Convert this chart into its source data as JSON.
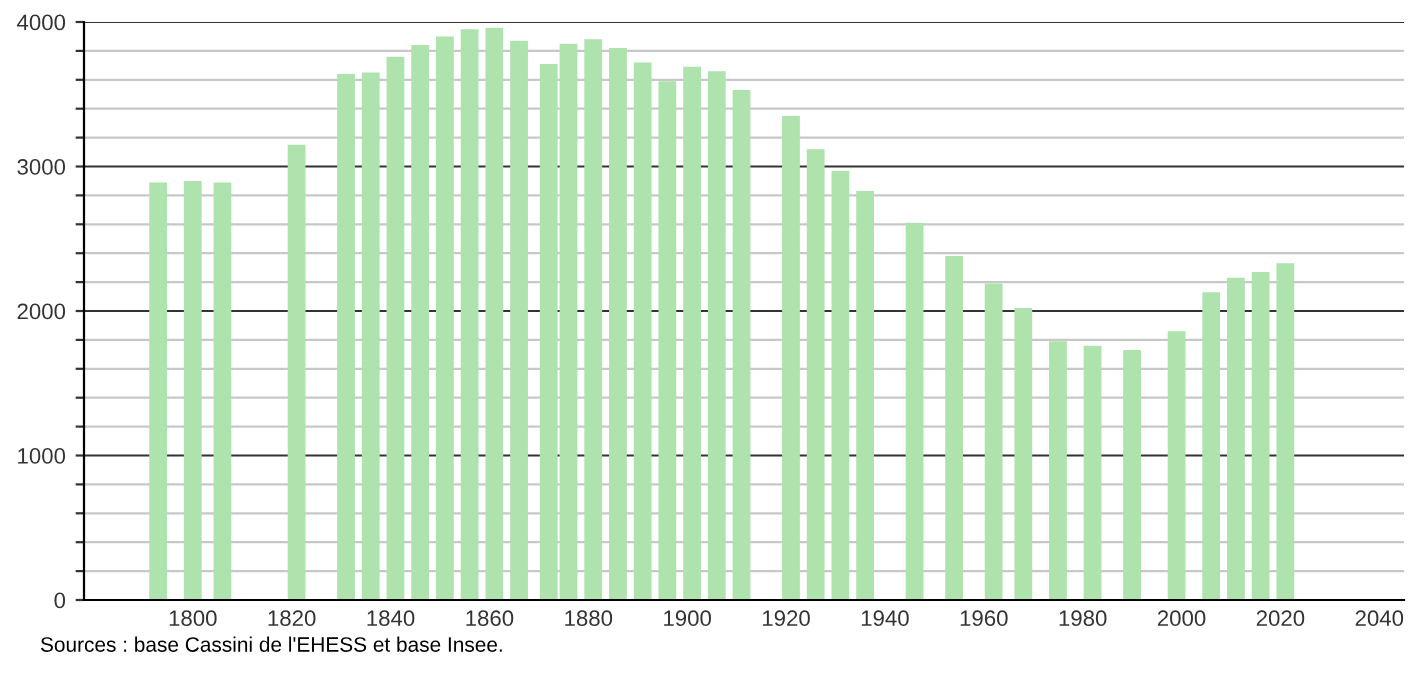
{
  "chart_data": {
    "type": "bar",
    "x": [
      1793,
      1800,
      1806,
      1821,
      1831,
      1836,
      1841,
      1846,
      1851,
      1856,
      1861,
      1866,
      1872,
      1876,
      1881,
      1886,
      1891,
      1896,
      1901,
      1906,
      1911,
      1921,
      1926,
      1931,
      1936,
      1946,
      1954,
      1962,
      1968,
      1975,
      1982,
      1990,
      1999,
      2006,
      2011,
      2016,
      2021
    ],
    "values": [
      2890,
      2900,
      2890,
      3150,
      3640,
      3650,
      3760,
      3840,
      3900,
      3950,
      3960,
      3870,
      3710,
      3850,
      3880,
      3820,
      3720,
      3590,
      3690,
      3660,
      3530,
      3350,
      3120,
      2970,
      2830,
      2610,
      2380,
      2190,
      2020,
      1790,
      1760,
      1730,
      1860,
      2130,
      2230,
      2270,
      2330
    ],
    "color": "#aee3ae",
    "xlim": [
      1778,
      2045
    ],
    "xticks": [
      1800,
      1820,
      1840,
      1860,
      1880,
      1900,
      1920,
      1940,
      1960,
      1980,
      2000,
      2020,
      2040
    ],
    "ylim": [
      0,
      4000
    ],
    "yticks": [
      0,
      {
        "value": 200,
        "label": null
      },
      {
        "value": 400,
        "label": null
      },
      {
        "value": 600,
        "label": null
      },
      {
        "value": 800,
        "label": null
      },
      1000,
      {
        "value": 1200,
        "label": null
      },
      {
        "value": 1400,
        "label": null
      },
      {
        "value": 1600,
        "label": null
      },
      {
        "value": 1800,
        "label": null
      },
      2000,
      {
        "value": 2200,
        "label": null
      },
      {
        "value": 2400,
        "label": null
      },
      {
        "value": 2600,
        "label": null
      },
      {
        "value": 2800,
        "label": null
      },
      3000,
      {
        "value": 3200,
        "label": null
      },
      {
        "value": 3400,
        "label": null
      },
      {
        "value": 3600,
        "label": null
      },
      {
        "value": 3800,
        "label": null
      },
      4000
    ],
    "grid": "y",
    "annotations": [
      "Sources : base Cassini de l'EHESS et base Insee."
    ]
  }
}
